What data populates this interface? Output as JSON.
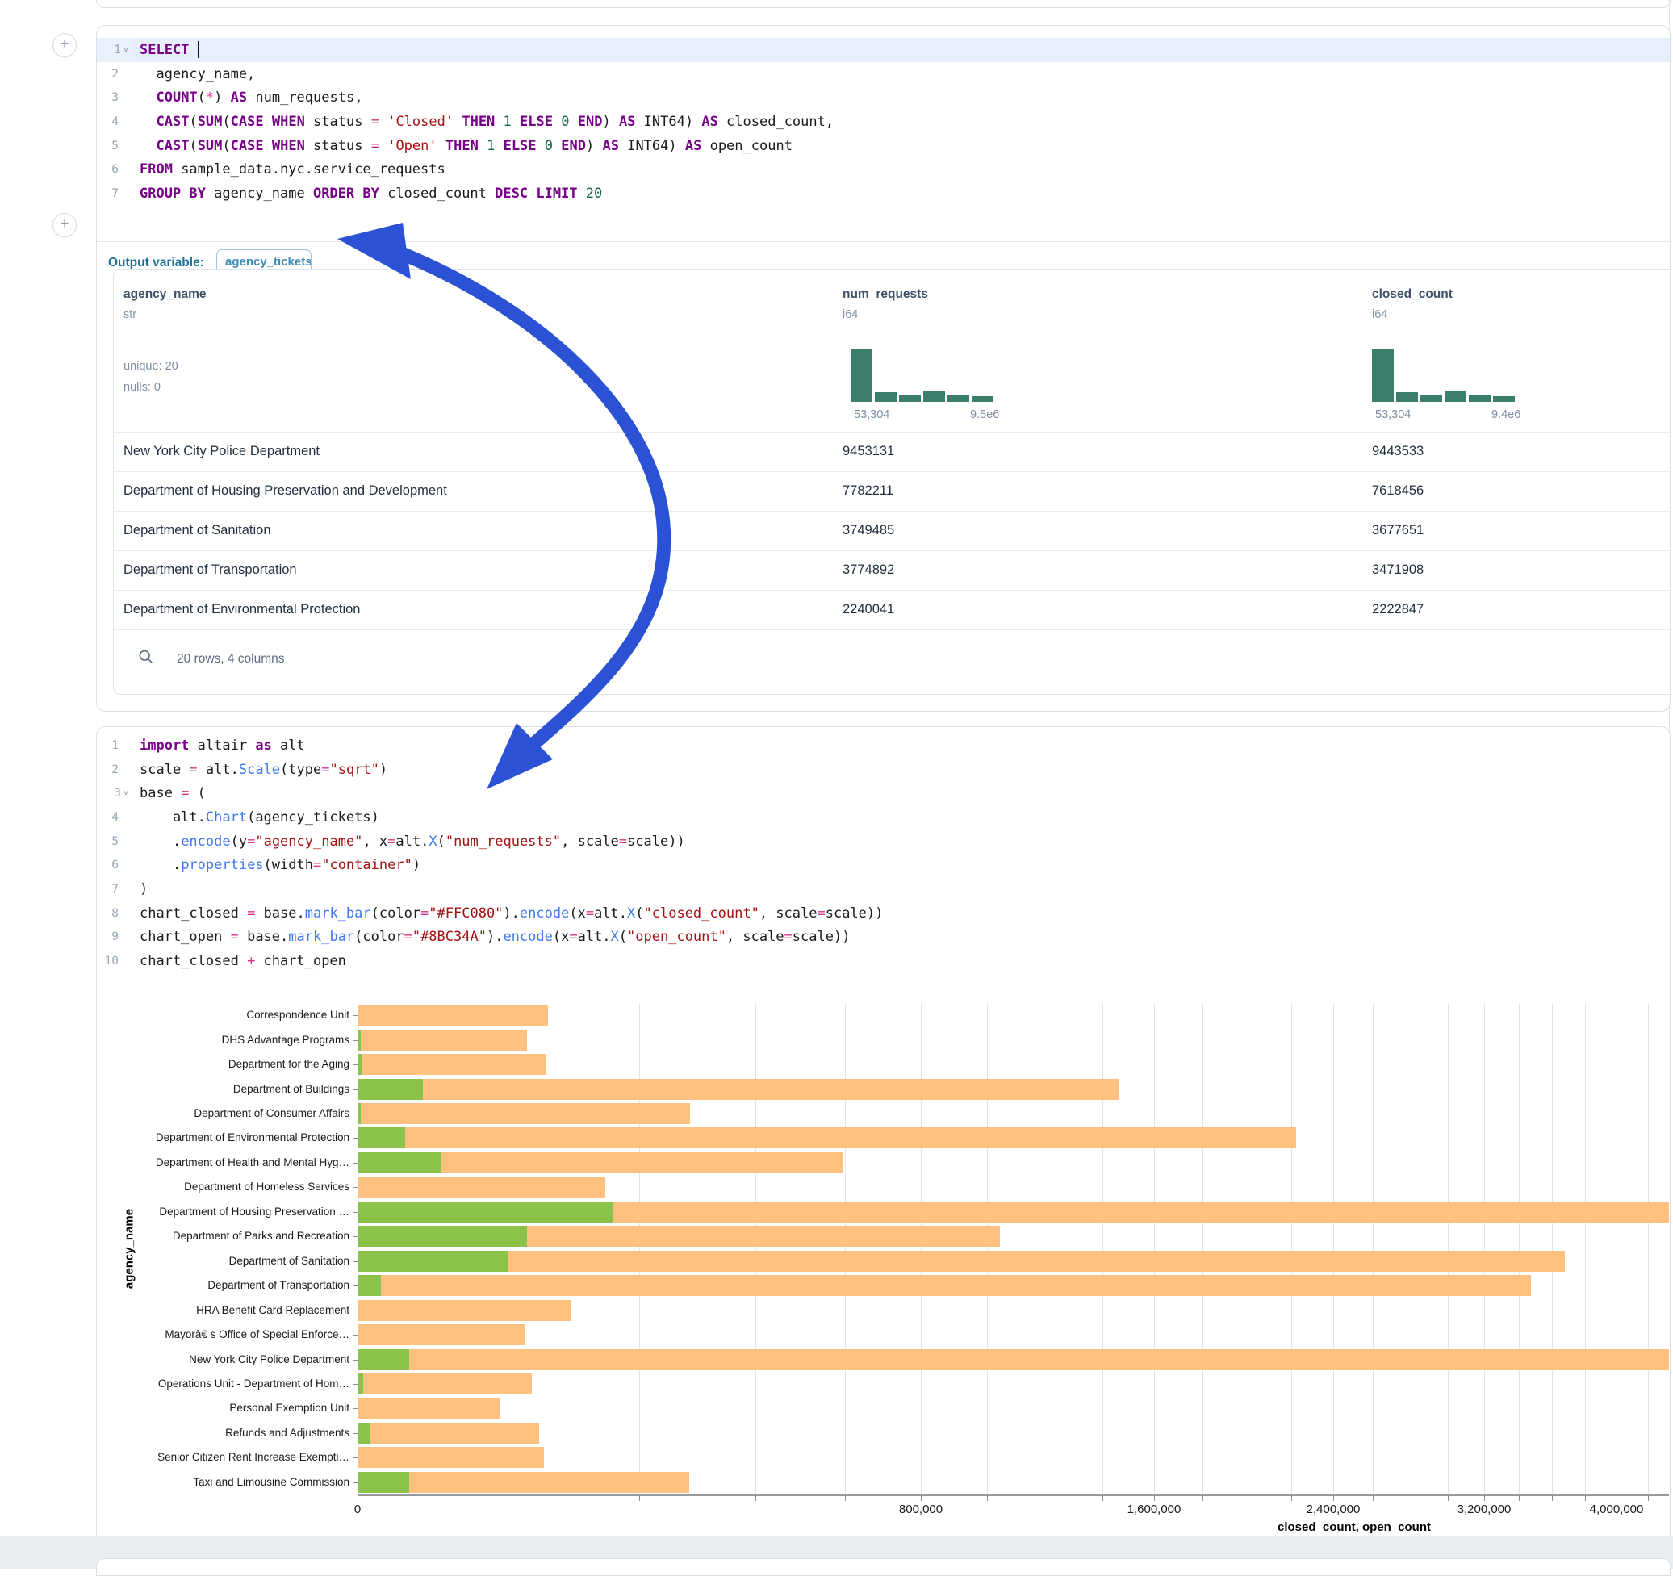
{
  "ui": {
    "add_cell_icon": "+",
    "output_variable_label": "Output variable:",
    "output_variable_value": "agency_tickets",
    "table_footer": "20 rows, 4 columns",
    "arrow_color": "#2b52d4"
  },
  "sql_cell": {
    "lines": [
      {
        "n": "1",
        "chev": true,
        "hl": true,
        "cursor": true,
        "toks": [
          [
            "SELECT",
            "kw"
          ],
          [
            " ",
            "pl"
          ]
        ]
      },
      {
        "n": "2",
        "toks": [
          [
            "  agency_name,",
            "pl"
          ]
        ]
      },
      {
        "n": "3",
        "toks": [
          [
            "  ",
            "pl"
          ],
          [
            "COUNT",
            "kw"
          ],
          [
            "(",
            "pl"
          ],
          [
            "*",
            "op"
          ],
          [
            ") ",
            "pl"
          ],
          [
            "AS",
            "kw"
          ],
          [
            " num_requests,",
            "pl"
          ]
        ]
      },
      {
        "n": "4",
        "toks": [
          [
            "  ",
            "pl"
          ],
          [
            "CAST",
            "kw"
          ],
          [
            "(",
            "pl"
          ],
          [
            "SUM",
            "kw"
          ],
          [
            "(",
            "pl"
          ],
          [
            "CASE",
            "kw"
          ],
          [
            " ",
            "pl"
          ],
          [
            "WHEN",
            "kw"
          ],
          [
            " status ",
            "pl"
          ],
          [
            "=",
            "op"
          ],
          [
            " ",
            "pl"
          ],
          [
            "'Closed'",
            "str"
          ],
          [
            " ",
            "pl"
          ],
          [
            "THEN",
            "kw"
          ],
          [
            " ",
            "pl"
          ],
          [
            "1",
            "num"
          ],
          [
            " ",
            "pl"
          ],
          [
            "ELSE",
            "kw"
          ],
          [
            " ",
            "pl"
          ],
          [
            "0",
            "num"
          ],
          [
            " ",
            "pl"
          ],
          [
            "END",
            "kw"
          ],
          [
            ") ",
            "pl"
          ],
          [
            "AS",
            "kw"
          ],
          [
            " INT64) ",
            "pl"
          ],
          [
            "AS",
            "kw"
          ],
          [
            " closed_count,",
            "pl"
          ]
        ]
      },
      {
        "n": "5",
        "toks": [
          [
            "  ",
            "pl"
          ],
          [
            "CAST",
            "kw"
          ],
          [
            "(",
            "pl"
          ],
          [
            "SUM",
            "kw"
          ],
          [
            "(",
            "pl"
          ],
          [
            "CASE",
            "kw"
          ],
          [
            " ",
            "pl"
          ],
          [
            "WHEN",
            "kw"
          ],
          [
            " status ",
            "pl"
          ],
          [
            "=",
            "op"
          ],
          [
            " ",
            "pl"
          ],
          [
            "'Open'",
            "str"
          ],
          [
            " ",
            "pl"
          ],
          [
            "THEN",
            "kw"
          ],
          [
            " ",
            "pl"
          ],
          [
            "1",
            "num"
          ],
          [
            " ",
            "pl"
          ],
          [
            "ELSE",
            "kw"
          ],
          [
            " ",
            "pl"
          ],
          [
            "0",
            "num"
          ],
          [
            " ",
            "pl"
          ],
          [
            "END",
            "kw"
          ],
          [
            ") ",
            "pl"
          ],
          [
            "AS",
            "kw"
          ],
          [
            " INT64) ",
            "pl"
          ],
          [
            "AS",
            "kw"
          ],
          [
            " open_count",
            "pl"
          ]
        ]
      },
      {
        "n": "6",
        "toks": [
          [
            "FROM",
            "kw"
          ],
          [
            " sample_data.nyc.service_requests",
            "pl"
          ]
        ]
      },
      {
        "n": "7",
        "toks": [
          [
            "GROUP BY",
            "kw"
          ],
          [
            " agency_name ",
            "pl"
          ],
          [
            "ORDER BY",
            "kw"
          ],
          [
            " closed_count ",
            "pl"
          ],
          [
            "DESC",
            "kw"
          ],
          [
            " ",
            "pl"
          ],
          [
            "LIMIT",
            "kw"
          ],
          [
            " ",
            "pl"
          ],
          [
            "20",
            "num"
          ]
        ]
      }
    ]
  },
  "python_cell": {
    "lines": [
      {
        "n": "1",
        "toks": [
          [
            "import",
            "kw"
          ],
          [
            " altair ",
            "pl"
          ],
          [
            "as",
            "kw"
          ],
          [
            " alt",
            "pl"
          ]
        ]
      },
      {
        "n": "2",
        "toks": [
          [
            "scale ",
            "pl"
          ],
          [
            "=",
            "op"
          ],
          [
            " alt.",
            "pl"
          ],
          [
            "Scale",
            "fn"
          ],
          [
            "(type",
            "pl"
          ],
          [
            "=",
            "op"
          ],
          [
            "\"sqrt\"",
            "str"
          ],
          [
            ")",
            "pl"
          ]
        ]
      },
      {
        "n": "3",
        "chev": true,
        "toks": [
          [
            "base ",
            "pl"
          ],
          [
            "=",
            "op"
          ],
          [
            " (",
            "pl"
          ]
        ]
      },
      {
        "n": "4",
        "toks": [
          [
            "    alt.",
            "pl"
          ],
          [
            "Chart",
            "fn"
          ],
          [
            "(agency_tickets)",
            "pl"
          ]
        ]
      },
      {
        "n": "5",
        "toks": [
          [
            "    .",
            "pl"
          ],
          [
            "encode",
            "fn"
          ],
          [
            "(y",
            "pl"
          ],
          [
            "=",
            "op"
          ],
          [
            "\"agency_name\"",
            "str"
          ],
          [
            ", x",
            "pl"
          ],
          [
            "=",
            "op"
          ],
          [
            "alt.",
            "pl"
          ],
          [
            "X",
            "fn"
          ],
          [
            "(",
            "pl"
          ],
          [
            "\"num_requests\"",
            "str"
          ],
          [
            ", scale",
            "pl"
          ],
          [
            "=",
            "op"
          ],
          [
            "scale))",
            "pl"
          ]
        ]
      },
      {
        "n": "6",
        "toks": [
          [
            "    .",
            "pl"
          ],
          [
            "properties",
            "fn"
          ],
          [
            "(width",
            "pl"
          ],
          [
            "=",
            "op"
          ],
          [
            "\"container\"",
            "str"
          ],
          [
            ")",
            "pl"
          ]
        ]
      },
      {
        "n": "7",
        "toks": [
          [
            ")",
            "pl"
          ]
        ]
      },
      {
        "n": "8",
        "toks": [
          [
            "chart_closed ",
            "pl"
          ],
          [
            "=",
            "op"
          ],
          [
            " base.",
            "pl"
          ],
          [
            "mark_bar",
            "fn"
          ],
          [
            "(color",
            "pl"
          ],
          [
            "=",
            "op"
          ],
          [
            "\"#FFC080\"",
            "str"
          ],
          [
            ").",
            "pl"
          ],
          [
            "encode",
            "fn"
          ],
          [
            "(x",
            "pl"
          ],
          [
            "=",
            "op"
          ],
          [
            "alt.",
            "pl"
          ],
          [
            "X",
            "fn"
          ],
          [
            "(",
            "pl"
          ],
          [
            "\"closed_count\"",
            "str"
          ],
          [
            ", scale",
            "pl"
          ],
          [
            "=",
            "op"
          ],
          [
            "scale))",
            "pl"
          ]
        ]
      },
      {
        "n": "9",
        "toks": [
          [
            "chart_open ",
            "pl"
          ],
          [
            "=",
            "op"
          ],
          [
            " base.",
            "pl"
          ],
          [
            "mark_bar",
            "fn"
          ],
          [
            "(color",
            "pl"
          ],
          [
            "=",
            "op"
          ],
          [
            "\"#8BC34A\"",
            "str"
          ],
          [
            ").",
            "pl"
          ],
          [
            "encode",
            "fn"
          ],
          [
            "(x",
            "pl"
          ],
          [
            "=",
            "op"
          ],
          [
            "alt.",
            "pl"
          ],
          [
            "X",
            "fn"
          ],
          [
            "(",
            "pl"
          ],
          [
            "\"open_count\"",
            "str"
          ],
          [
            ", scale",
            "pl"
          ],
          [
            "=",
            "op"
          ],
          [
            "scale))",
            "pl"
          ]
        ]
      },
      {
        "n": "10",
        "toks": [
          [
            "chart_closed ",
            "pl"
          ],
          [
            "+",
            "op"
          ],
          [
            " chart_open",
            "pl"
          ]
        ]
      }
    ]
  },
  "table": {
    "columns": [
      {
        "name": "agency_name",
        "type": "str",
        "stats": [
          "unique: 20",
          "nulls: 0"
        ],
        "x": 12
      },
      {
        "name": "num_requests",
        "type": "i64",
        "x": 903,
        "hist": {
          "x": 913,
          "bars": [
            1,
            0.18,
            0.12,
            0.2,
            0.12,
            0.11
          ],
          "min_label": "53,304",
          "max_label": "9.5e6"
        }
      },
      {
        "name": "closed_count",
        "type": "i64",
        "x": 1559,
        "hist": {
          "x": 1559,
          "bars": [
            1,
            0.18,
            0.12,
            0.2,
            0.12,
            0.11
          ],
          "min_label": "53,304",
          "max_label": "9.4e6"
        }
      }
    ],
    "rows": [
      [
        "New York City Police Department",
        "9453131",
        "9443533"
      ],
      [
        "Department of Housing Preservation and Development",
        "7782211",
        "7618456"
      ],
      [
        "Department of Sanitation",
        "3749485",
        "3677651"
      ],
      [
        "Department of Transportation",
        "3774892",
        "3471908"
      ],
      [
        "Department of Environmental Protection",
        "2240041",
        "2222847"
      ]
    ]
  },
  "chart_data": {
    "type": "bar",
    "orientation": "horizontal",
    "x_scale_type": "sqrt",
    "xlabel": "closed_count, open_count",
    "ylabel": "agency_name",
    "x_tick_values": [
      0,
      800000,
      1600000,
      2400000,
      3200000,
      4000000
    ],
    "x_tick_labels": [
      "0",
      "800,000",
      "1,600,000",
      "2,400,000",
      "3,200,000",
      "4,000,000"
    ],
    "gridline_step": 200000,
    "x_visible_max": 4338000,
    "grid": true,
    "categories": [
      "Correspondence Unit",
      "DHS Advantage Programs",
      "Department for the Aging",
      "Department of Buildings",
      "Department of Consumer Affairs",
      "Department of Environmental Protection",
      "Department of Health and Mental Hyg…",
      "Department of Homeless Services",
      "Department of Housing Preservation …",
      "Department of Parks and Recreation",
      "Department of Sanitation",
      "Department of Transportation",
      "HRA Benefit Card Replacement",
      "Mayorâ€ s Office of Special Enforce…",
      "New York City Police Department",
      "Operations Unit - Department of Hom…",
      "Personal Exemption Unit",
      "Refunds and Adjustments",
      "Senior Citizen Rent Increase Exempti…",
      "Taxi and Limousine Commission"
    ],
    "series": [
      {
        "name": "closed_count",
        "color": "#FFC080",
        "values": [
          91700,
          72700,
          90200,
          1464000,
          278500,
          2222847,
          595800,
          154900,
          7618456,
          1039800,
          3677651,
          3471908,
          114700,
          70600,
          9443533,
          76900,
          51200,
          83400,
          87900,
          277200
        ]
      },
      {
        "name": "open_count",
        "color": "#8BC34A",
        "values": [
          0,
          30,
          40,
          10700,
          30,
          5700,
          17300,
          0,
          163755,
          72700,
          57100,
          1370,
          0,
          0,
          6700,
          80,
          0,
          370,
          0,
          6700
        ]
      }
    ]
  }
}
